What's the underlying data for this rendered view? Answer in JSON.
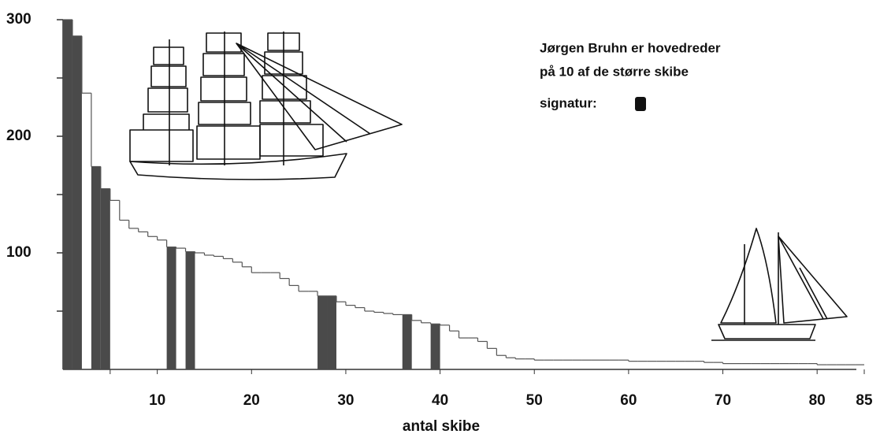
{
  "chart_data": {
    "type": "step",
    "x_label": "antal skibe",
    "annotation": [
      "Jørgen Bruhn er hovedreder",
      "på 10 af de større skibe",
      "signatur:"
    ],
    "values": [
      300,
      286,
      237,
      174,
      155,
      145,
      128,
      121,
      118,
      114,
      111,
      105,
      104,
      101,
      100,
      98,
      97,
      95,
      92,
      88,
      83,
      83,
      83,
      78,
      72,
      67,
      67,
      63,
      63,
      58,
      55,
      53,
      50,
      49,
      48,
      47,
      47,
      42,
      40,
      39,
      38,
      33,
      27,
      27,
      24,
      18,
      12,
      10,
      9,
      9,
      8,
      8,
      8,
      8,
      8,
      8,
      8,
      8,
      8,
      8,
      7,
      7,
      7,
      7,
      7,
      7,
      7,
      7,
      6,
      6,
      5,
      5,
      5,
      5,
      5,
      5,
      5,
      5,
      5,
      5,
      4,
      4,
      4,
      4,
      4
    ],
    "highlight": [
      1,
      2,
      4,
      5,
      12,
      14,
      28,
      29,
      37,
      40
    ],
    "color": "#4a4a4a",
    "line_color": "#555555",
    "xlim": [
      0,
      85
    ],
    "xticks": [
      10,
      20,
      30,
      40,
      50,
      60,
      70,
      80,
      85
    ],
    "xminorticks": [
      5
    ],
    "ylim": [
      0,
      300
    ],
    "yticks": [
      100,
      200,
      300
    ],
    "yminorticks": [
      50,
      150,
      250
    ]
  }
}
